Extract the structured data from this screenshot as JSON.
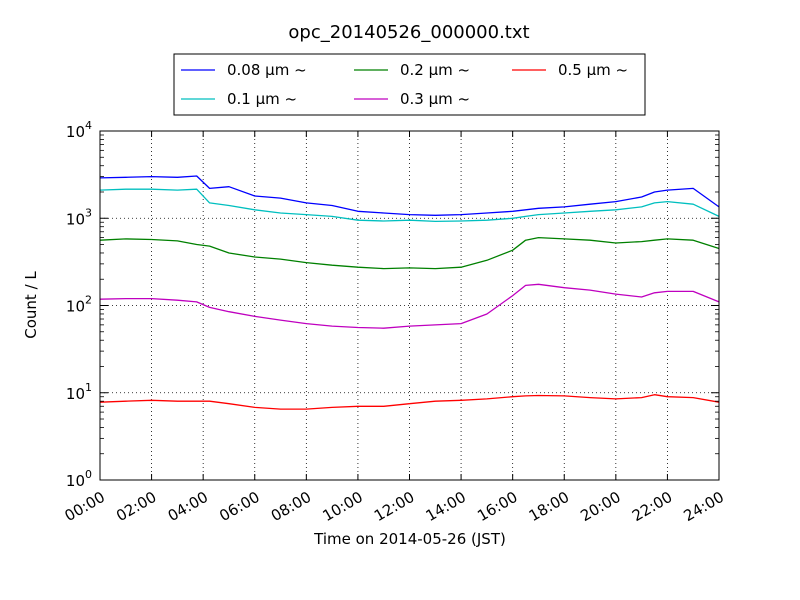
{
  "chart_data": {
    "type": "line",
    "title": "opc_20140526_000000.txt",
    "xlabel": "Time on 2014-05-26 (JST)",
    "ylabel": "Count / L",
    "yscale": "log",
    "ylim": [
      1,
      10000
    ],
    "xlim": [
      "00:00",
      "24:00"
    ],
    "grid": true,
    "legend_position": "top-center",
    "x_ticks": [
      "00:00",
      "02:00",
      "04:00",
      "06:00",
      "08:00",
      "10:00",
      "12:00",
      "14:00",
      "16:00",
      "18:00",
      "20:00",
      "22:00",
      "24:00"
    ],
    "y_ticks": [
      {
        "base": "10",
        "exp": "0",
        "value": 1
      },
      {
        "base": "10",
        "exp": "1",
        "value": 10
      },
      {
        "base": "10",
        "exp": "2",
        "value": 100
      },
      {
        "base": "10",
        "exp": "3",
        "value": 1000
      },
      {
        "base": "10",
        "exp": "4",
        "value": 10000
      }
    ],
    "x": [
      "00:00",
      "01:00",
      "02:00",
      "03:00",
      "03:45",
      "04:15",
      "05:00",
      "06:00",
      "07:00",
      "08:00",
      "09:00",
      "10:00",
      "11:00",
      "12:00",
      "13:00",
      "14:00",
      "15:00",
      "16:00",
      "16:30",
      "17:00",
      "18:00",
      "19:00",
      "20:00",
      "21:00",
      "21:30",
      "22:00",
      "23:00",
      "24:00"
    ],
    "series": [
      {
        "name": "0.08 μm ~",
        "color": "#0000ff",
        "values": [
          2900,
          2950,
          3000,
          2950,
          3050,
          2200,
          2300,
          1800,
          1700,
          1500,
          1400,
          1200,
          1150,
          1100,
          1080,
          1100,
          1150,
          1200,
          1250,
          1300,
          1350,
          1450,
          1550,
          1750,
          2000,
          2100,
          2200,
          1350
        ]
      },
      {
        "name": "0.1 μm ~",
        "color": "#00bfbf",
        "values": [
          2100,
          2150,
          2150,
          2100,
          2150,
          1500,
          1400,
          1250,
          1150,
          1100,
          1050,
          950,
          930,
          950,
          920,
          930,
          950,
          1000,
          1050,
          1100,
          1150,
          1200,
          1250,
          1350,
          1500,
          1550,
          1450,
          1050
        ]
      },
      {
        "name": "0.2 μm ~",
        "color": "#008000",
        "values": [
          560,
          580,
          570,
          550,
          500,
          480,
          400,
          360,
          340,
          310,
          290,
          275,
          265,
          270,
          265,
          275,
          330,
          430,
          560,
          600,
          580,
          560,
          520,
          540,
          560,
          580,
          560,
          450
        ]
      },
      {
        "name": "0.3 μm ~",
        "color": "#bf00bf",
        "values": [
          118,
          120,
          120,
          115,
          110,
          95,
          85,
          75,
          68,
          62,
          58,
          56,
          55,
          58,
          60,
          62,
          80,
          130,
          170,
          175,
          160,
          150,
          135,
          125,
          140,
          145,
          145,
          110
        ]
      },
      {
        "name": "0.5 μm ~",
        "color": "#ff0000",
        "values": [
          7.8,
          8,
          8.2,
          8,
          8,
          8,
          7.5,
          6.8,
          6.5,
          6.5,
          6.8,
          7,
          7,
          7.5,
          8,
          8.2,
          8.5,
          9,
          9.2,
          9.3,
          9.2,
          8.8,
          8.5,
          8.8,
          9.5,
          9,
          8.8,
          7.8
        ]
      }
    ]
  }
}
